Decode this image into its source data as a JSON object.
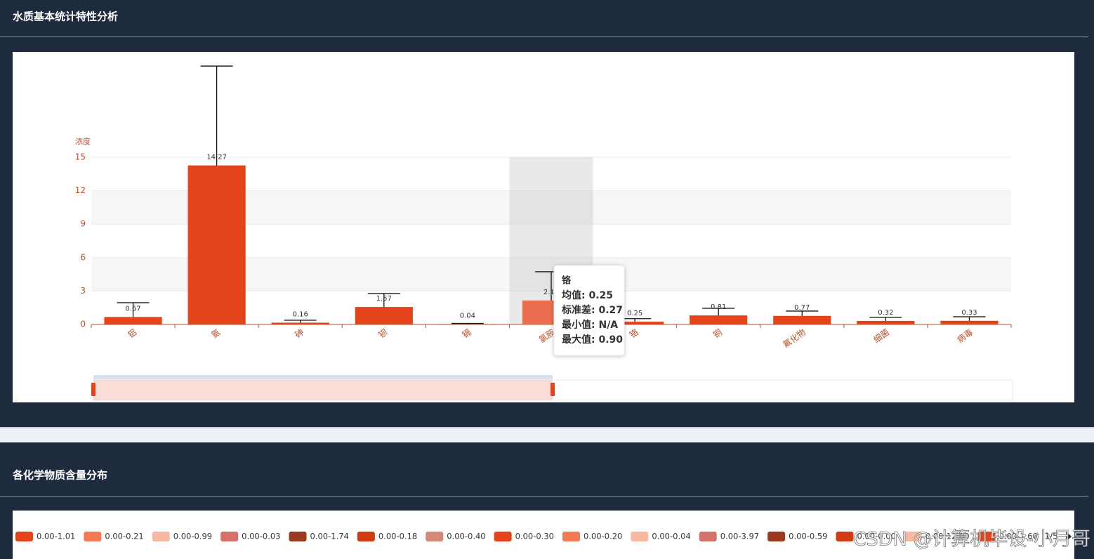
{
  "chart_data": {
    "type": "bar",
    "panel_title": "水质基本统计特性分析",
    "y_label": "浓度",
    "categories": [
      "铝",
      "氨",
      "砷",
      "钡",
      "镉",
      "氯胺",
      "铬",
      "铜",
      "氟化物",
      "细菌",
      "病毒"
    ],
    "series": [
      {
        "name": "均值",
        "color": "#e5441b",
        "values": [
          0.67,
          14.27,
          0.16,
          1.57,
          0.04,
          2.15,
          0.25,
          0.81,
          0.77,
          0.32,
          0.33
        ],
        "errors": [
          1.28,
          8.92,
          0.22,
          1.2,
          0.05,
          2.58,
          0.27,
          0.64,
          0.43,
          0.31,
          0.36
        ]
      }
    ],
    "ylim": [
      0,
      15
    ],
    "yticks": [
      0,
      3,
      6,
      9,
      12,
      15
    ],
    "grid": true,
    "hover_index": 5,
    "hover_color": "#ea6e4e",
    "tooltip": {
      "title": "铬",
      "lines": [
        "均值: 0.25",
        "标准差: 0.27",
        "最小值: N/A",
        "最大值: 0.90"
      ]
    }
  },
  "distribution_panel": {
    "title": "各化学物质含量分布",
    "legend": [
      {
        "name": "0.00-1.01",
        "color": "#e5441b"
      },
      {
        "name": "0.00-0.21",
        "color": "#f47a55"
      },
      {
        "name": "0.00-0.99",
        "color": "#f8b9a3"
      },
      {
        "name": "0.00-0.03",
        "color": "#d4716a"
      },
      {
        "name": "0.00-1.74",
        "color": "#9c3a1f"
      },
      {
        "name": "0.00-0.18",
        "color": "#d13c14"
      },
      {
        "name": "0.00-0.40",
        "color": "#d4887a"
      },
      {
        "name": "0.00-0.30",
        "color": "#e5441b"
      },
      {
        "name": "0.00-0.20",
        "color": "#f47a55"
      },
      {
        "name": "0.00-0.04",
        "color": "#f8b9a3"
      },
      {
        "name": "0.00-3.97",
        "color": "#d4716a"
      },
      {
        "name": "0.00-0.59",
        "color": "#9c3a1f"
      },
      {
        "name": "0.00-0.00",
        "color": "#d13c14"
      },
      {
        "name": "0.00-12.00",
        "color": "#f8b9a3"
      },
      {
        "name": "0.00-1.60",
        "color": "#e5441b"
      }
    ],
    "pager": "1/5"
  },
  "watermark": "CSDN @计算机毕设-小月哥"
}
